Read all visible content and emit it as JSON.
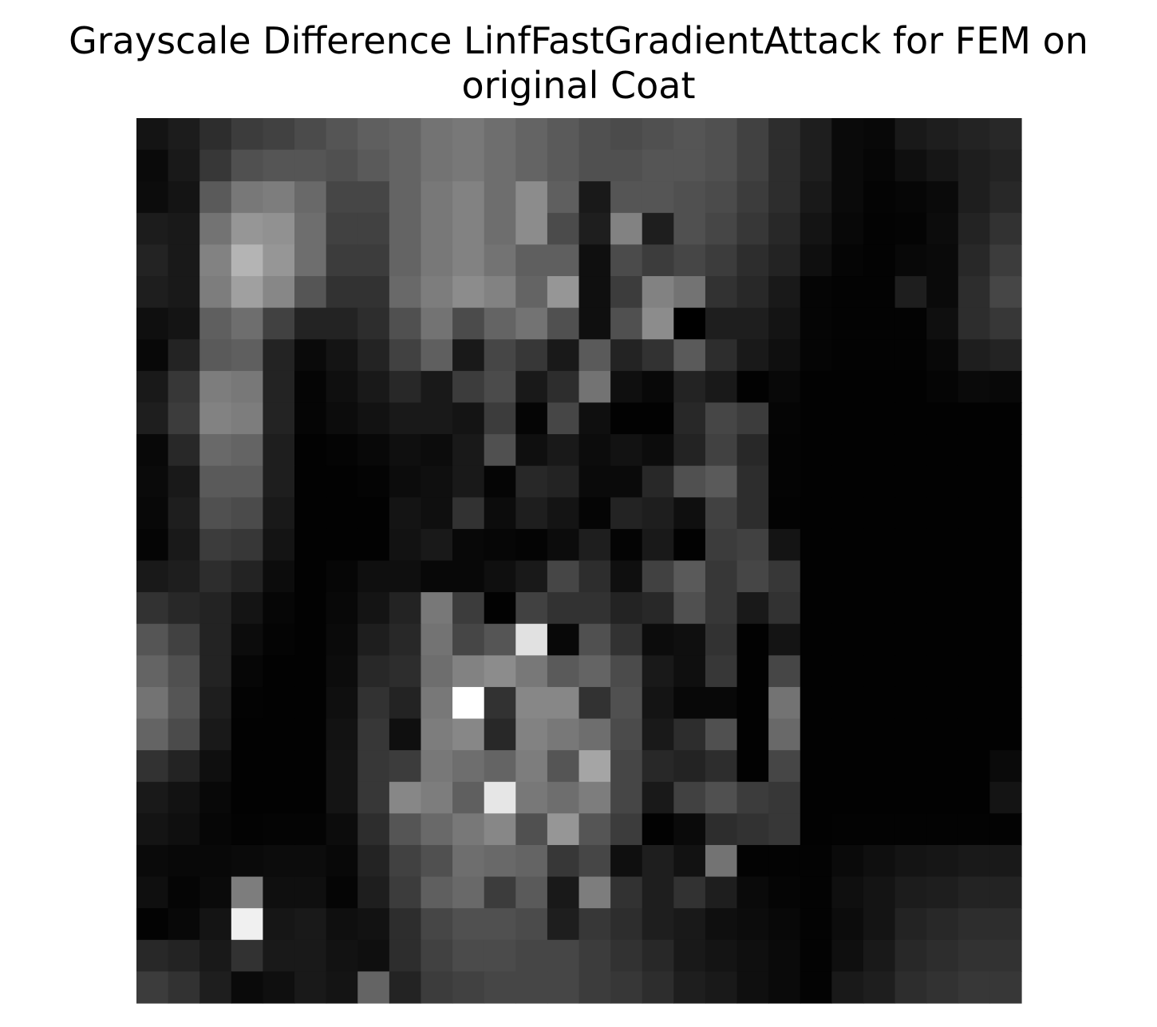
{
  "chart_data": {
    "type": "heatmap",
    "title_lines": [
      "Grayscale Difference LinfFastGradientAttack for FEM on",
      "original Coat"
    ],
    "colormap": "gray",
    "grid": false,
    "axes_visible": false,
    "value_range": [
      0,
      255
    ],
    "rows": 28,
    "cols": 28,
    "values": [
      [
        20,
        28,
        45,
        60,
        65,
        75,
        85,
        95,
        100,
        115,
        120,
        110,
        100,
        90,
        80,
        75,
        80,
        85,
        80,
        65,
        45,
        30,
        10,
        8,
        25,
        30,
        35,
        40
      ],
      [
        10,
        25,
        55,
        80,
        85,
        85,
        80,
        90,
        100,
        115,
        120,
        110,
        100,
        90,
        80,
        80,
        85,
        85,
        80,
        65,
        45,
        30,
        10,
        6,
        15,
        22,
        30,
        35
      ],
      [
        12,
        20,
        90,
        120,
        125,
        105,
        70,
        70,
        100,
        120,
        130,
        110,
        140,
        95,
        25,
        85,
        85,
        80,
        75,
        60,
        45,
        25,
        10,
        4,
        6,
        10,
        30,
        40
      ],
      [
        28,
        25,
        115,
        150,
        145,
        110,
        65,
        65,
        100,
        120,
        130,
        110,
        140,
        75,
        30,
        130,
        30,
        80,
        70,
        55,
        40,
        20,
        8,
        3,
        4,
        12,
        35,
        50
      ],
      [
        35,
        25,
        130,
        180,
        150,
        110,
        60,
        60,
        100,
        120,
        130,
        115,
        95,
        95,
        15,
        75,
        60,
        70,
        60,
        45,
        35,
        15,
        5,
        3,
        8,
        10,
        40,
        60
      ],
      [
        30,
        25,
        125,
        160,
        135,
        85,
        50,
        50,
        105,
        125,
        140,
        130,
        100,
        150,
        15,
        60,
        130,
        115,
        50,
        40,
        25,
        5,
        3,
        3,
        30,
        10,
        45,
        70
      ],
      [
        15,
        20,
        95,
        110,
        65,
        35,
        35,
        45,
        80,
        115,
        75,
        100,
        115,
        80,
        15,
        80,
        140,
        0,
        30,
        30,
        20,
        5,
        3,
        3,
        3,
        15,
        45,
        55
      ],
      [
        8,
        35,
        90,
        95,
        35,
        10,
        20,
        35,
        65,
        95,
        25,
        70,
        55,
        25,
        90,
        35,
        50,
        90,
        45,
        25,
        15,
        5,
        3,
        3,
        3,
        8,
        30,
        35
      ],
      [
        25,
        55,
        125,
        120,
        35,
        5,
        15,
        25,
        40,
        25,
        60,
        75,
        25,
        45,
        115,
        15,
        8,
        35,
        25,
        2,
        8,
        2,
        2,
        2,
        2,
        5,
        10,
        8
      ],
      [
        30,
        60,
        130,
        125,
        35,
        5,
        12,
        18,
        25,
        25,
        20,
        60,
        5,
        70,
        15,
        2,
        2,
        40,
        70,
        60,
        5,
        2,
        2,
        2,
        2,
        2,
        2,
        2
      ],
      [
        8,
        40,
        105,
        100,
        30,
        2,
        4,
        8,
        15,
        12,
        25,
        80,
        15,
        25,
        12,
        18,
        12,
        35,
        65,
        40,
        4,
        2,
        2,
        2,
        2,
        2,
        2,
        2
      ],
      [
        10,
        25,
        90,
        90,
        30,
        2,
        2,
        4,
        12,
        15,
        25,
        5,
        40,
        35,
        10,
        10,
        40,
        80,
        90,
        45,
        4,
        2,
        2,
        2,
        2,
        2,
        2,
        2
      ],
      [
        8,
        30,
        80,
        75,
        25,
        2,
        2,
        2,
        20,
        15,
        50,
        12,
        30,
        20,
        5,
        35,
        30,
        15,
        65,
        45,
        3,
        2,
        2,
        2,
        2,
        2,
        2,
        2
      ],
      [
        5,
        25,
        60,
        55,
        20,
        2,
        2,
        2,
        18,
        25,
        8,
        6,
        4,
        12,
        30,
        4,
        25,
        2,
        60,
        65,
        20,
        2,
        2,
        2,
        2,
        2,
        2,
        2
      ],
      [
        25,
        30,
        45,
        35,
        12,
        2,
        6,
        15,
        15,
        8,
        8,
        15,
        25,
        70,
        45,
        15,
        65,
        90,
        55,
        70,
        55,
        2,
        2,
        2,
        2,
        2,
        2,
        2
      ],
      [
        50,
        40,
        35,
        20,
        6,
        2,
        8,
        20,
        35,
        120,
        60,
        2,
        65,
        50,
        50,
        35,
        40,
        80,
        55,
        25,
        50,
        2,
        2,
        2,
        2,
        2,
        2,
        2
      ],
      [
        85,
        65,
        35,
        12,
        4,
        2,
        10,
        30,
        40,
        115,
        70,
        85,
        225,
        8,
        80,
        50,
        12,
        15,
        50,
        2,
        20,
        2,
        2,
        2,
        2,
        2,
        2,
        2
      ],
      [
        100,
        80,
        35,
        6,
        2,
        2,
        12,
        40,
        45,
        110,
        130,
        140,
        120,
        90,
        100,
        75,
        25,
        15,
        55,
        2,
        70,
        2,
        2,
        2,
        2,
        2,
        2,
        2
      ],
      [
        115,
        85,
        30,
        3,
        2,
        2,
        15,
        50,
        35,
        120,
        255,
        50,
        135,
        135,
        50,
        80,
        20,
        8,
        8,
        2,
        115,
        2,
        2,
        2,
        2,
        2,
        2,
        2
      ],
      [
        100,
        75,
        25,
        2,
        2,
        2,
        18,
        55,
        15,
        125,
        135,
        40,
        130,
        120,
        110,
        75,
        25,
        45,
        80,
        2,
        105,
        2,
        2,
        2,
        2,
        2,
        2,
        2
      ],
      [
        50,
        35,
        15,
        2,
        2,
        2,
        20,
        55,
        60,
        120,
        110,
        100,
        125,
        85,
        165,
        70,
        40,
        35,
        45,
        2,
        70,
        2,
        2,
        2,
        2,
        2,
        2,
        10
      ],
      [
        25,
        18,
        8,
        2,
        2,
        2,
        20,
        55,
        135,
        125,
        95,
        230,
        120,
        110,
        125,
        70,
        25,
        65,
        80,
        60,
        55,
        2,
        2,
        2,
        2,
        2,
        2,
        20
      ],
      [
        20,
        15,
        6,
        3,
        4,
        4,
        12,
        45,
        85,
        105,
        120,
        135,
        80,
        150,
        85,
        60,
        2,
        10,
        45,
        50,
        55,
        2,
        3,
        3,
        3,
        3,
        3,
        3
      ],
      [
        10,
        8,
        8,
        10,
        12,
        12,
        8,
        35,
        65,
        80,
        110,
        105,
        100,
        55,
        70,
        15,
        30,
        18,
        115,
        3,
        3,
        3,
        10,
        15,
        20,
        22,
        25,
        25
      ],
      [
        15,
        5,
        10,
        125,
        15,
        15,
        5,
        30,
        60,
        95,
        105,
        60,
        90,
        25,
        125,
        50,
        30,
        50,
        30,
        10,
        5,
        3,
        15,
        20,
        28,
        30,
        35,
        35
      ],
      [
        3,
        8,
        20,
        240,
        22,
        25,
        15,
        18,
        45,
        70,
        80,
        80,
        75,
        30,
        55,
        45,
        30,
        25,
        15,
        12,
        8,
        3,
        12,
        20,
        35,
        40,
        45,
        45
      ],
      [
        40,
        35,
        25,
        50,
        25,
        25,
        18,
        15,
        45,
        65,
        75,
        75,
        70,
        70,
        60,
        50,
        40,
        25,
        20,
        15,
        10,
        3,
        15,
        25,
        40,
        45,
        50,
        50
      ],
      [
        60,
        50,
        30,
        10,
        15,
        25,
        20,
        100,
        35,
        60,
        65,
        70,
        70,
        70,
        60,
        55,
        45,
        30,
        25,
        15,
        10,
        3,
        25,
        30,
        45,
        50,
        55,
        55
      ]
    ]
  }
}
